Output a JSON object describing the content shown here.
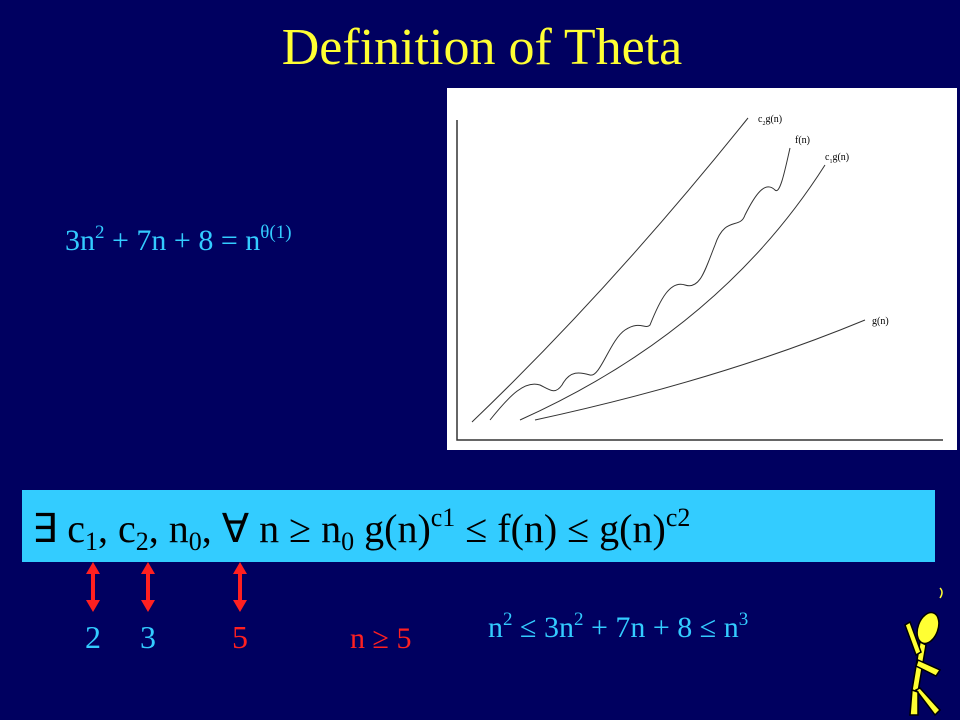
{
  "title": "Definition of  Theta",
  "equation": [
    "3n",
    "2",
    " + 7n  + 8 = n",
    "θ(1)"
  ],
  "graph": {
    "labels": [
      [
        "c",
        "2",
        "g(n)"
      ],
      [
        "f(n)"
      ],
      [
        "c",
        "1",
        "g(n)"
      ],
      [
        "g(n)"
      ]
    ]
  },
  "definition": [
    "∃ c",
    "1",
    ", c",
    "2",
    ",  n",
    "0",
    ", ∀ n ≥ n",
    "0",
    " g(n)",
    "c1",
    " ≤ f(n) ≤ g(n)",
    "c2"
  ],
  "constants": [
    "2",
    "3",
    "5"
  ],
  "condition": "n ≥ 5",
  "example": [
    "n",
    "2",
    " ≤ 3n",
    "2",
    " + 7n  + 8 ≤ n",
    "3"
  ]
}
